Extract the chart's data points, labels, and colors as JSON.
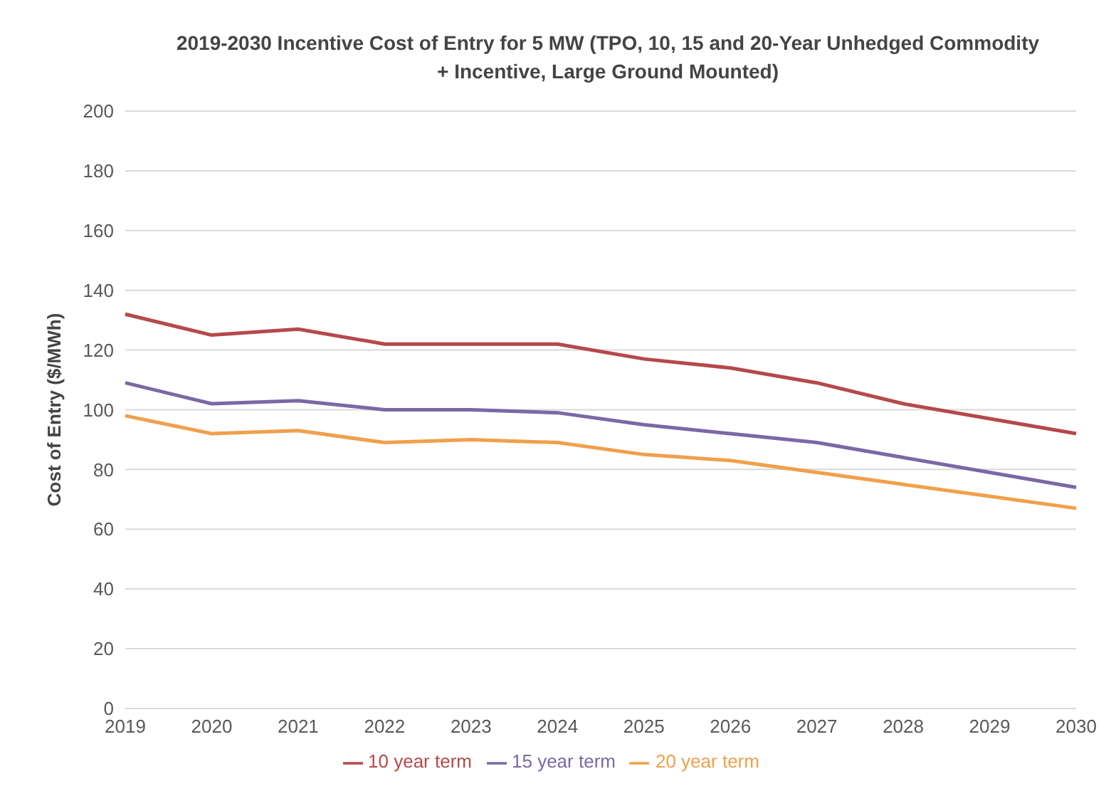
{
  "chart_data": {
    "type": "line",
    "title": "2019-2030 Incentive Cost of Entry for 5 MW (TPO, 10, 15 and 20-Year Unhedged Commodity + Incentive, Large Ground Mounted)",
    "ylabel": "Cost of Entry ($/MWh)",
    "categories": [
      "2019",
      "2020",
      "2021",
      "2022",
      "2023",
      "2024",
      "2025",
      "2026",
      "2027",
      "2028",
      "2029",
      "2030"
    ],
    "series": [
      {
        "name": "10 year term",
        "color": "#b5494b",
        "values": [
          132,
          125,
          127,
          122,
          122,
          122,
          117,
          114,
          109,
          102,
          97,
          92
        ]
      },
      {
        "name": "15 year term",
        "color": "#7a68a6",
        "values": [
          109,
          102,
          103,
          100,
          100,
          99,
          95,
          92,
          89,
          84,
          79,
          74
        ]
      },
      {
        "name": "20 year term",
        "color": "#f0a04b",
        "values": [
          98,
          92,
          93,
          89,
          90,
          89,
          85,
          83,
          79,
          75,
          71,
          67
        ]
      }
    ],
    "ylim": [
      0,
      200
    ],
    "yticks": [
      0,
      20,
      40,
      60,
      80,
      100,
      120,
      140,
      160,
      180,
      200
    ],
    "grid": "y",
    "legend": "bottom",
    "marker": "none",
    "line_style": "solid"
  }
}
